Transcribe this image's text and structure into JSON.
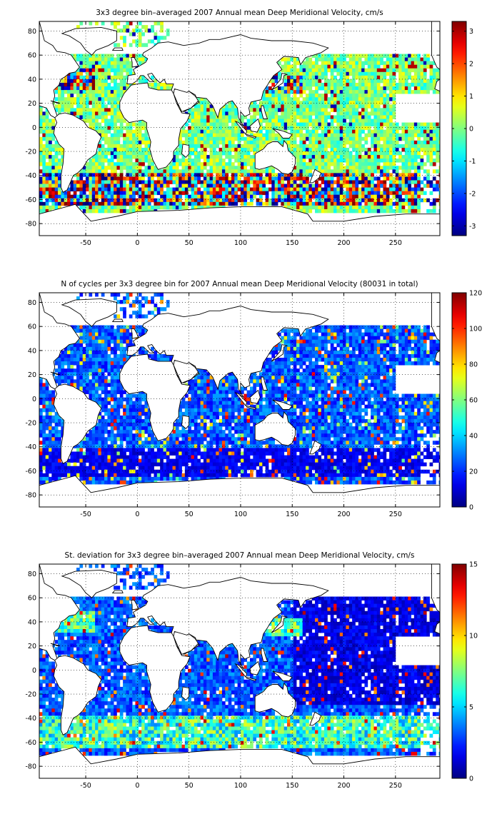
{
  "chart_data": [
    {
      "type": "heatmap",
      "title": "3x3 degree bin–averaged 2007 Annual mean Deep Meridional Velocity, cm/s",
      "colormap": "jet",
      "bin_size_deg": 3,
      "xlim": [
        -95,
        293
      ],
      "ylim": [
        -90,
        88
      ],
      "xticks": [
        -50,
        0,
        50,
        100,
        150,
        200,
        250
      ],
      "yticks": [
        80,
        60,
        40,
        20,
        0,
        -20,
        -40,
        -60,
        -80
      ],
      "grid": true,
      "colorbar": {
        "range": [
          -3.3,
          3.3
        ],
        "ticks": [
          3,
          2,
          1,
          0,
          -1,
          -2,
          -3
        ]
      },
      "field": "velocity"
    },
    {
      "type": "heatmap",
      "title": "N of cycles per 3x3 degree bin for 2007 Annual mean Deep Meridional Velocity (80031 in total)",
      "colormap": "jet",
      "bin_size_deg": 3,
      "xlim": [
        -95,
        293
      ],
      "ylim": [
        -90,
        88
      ],
      "xticks": [
        -50,
        0,
        50,
        100,
        150,
        200,
        250
      ],
      "yticks": [
        80,
        60,
        40,
        20,
        0,
        -20,
        -40,
        -60,
        -80
      ],
      "grid": true,
      "colorbar": {
        "range": [
          0,
          120
        ],
        "ticks": [
          120,
          100,
          80,
          60,
          40,
          20,
          0
        ]
      },
      "field": "count"
    },
    {
      "type": "heatmap",
      "title": "St. deviation for 3x3 degree bin–averaged 2007 Annual mean Deep Meridional Velocity, cm/s",
      "colormap": "jet",
      "bin_size_deg": 3,
      "xlim": [
        -95,
        293
      ],
      "ylim": [
        -90,
        88
      ],
      "xticks": [
        -50,
        0,
        50,
        100,
        150,
        200,
        250
      ],
      "yticks": [
        80,
        60,
        40,
        20,
        0,
        -20,
        -40,
        -60,
        -80
      ],
      "grid": true,
      "colorbar": {
        "range": [
          0,
          15
        ],
        "ticks": [
          15,
          10,
          5,
          0
        ]
      },
      "field": "stdev"
    }
  ]
}
